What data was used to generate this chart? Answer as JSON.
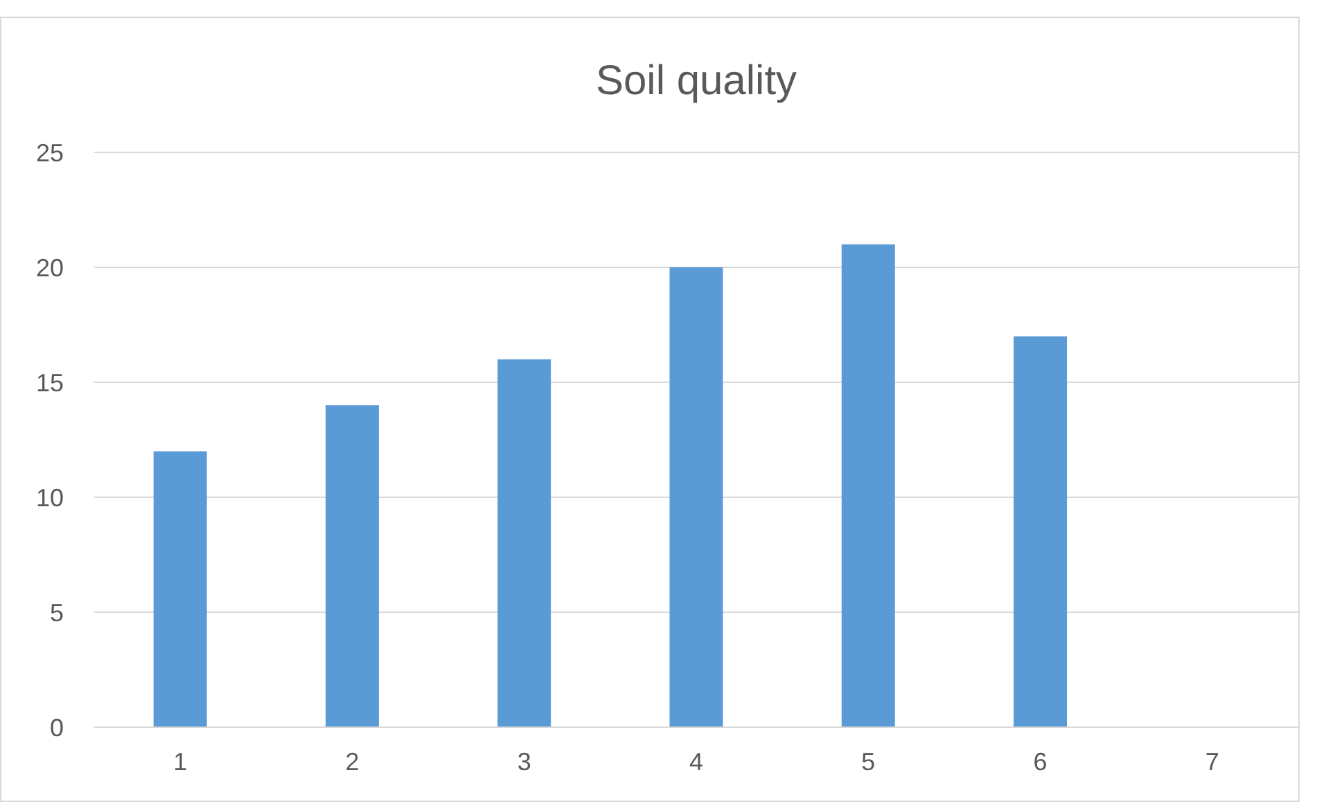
{
  "chart_data": {
    "type": "bar",
    "title": "Soil quality",
    "categories": [
      "1",
      "2",
      "3",
      "4",
      "5",
      "6",
      "7"
    ],
    "values": [
      12,
      14,
      16,
      20,
      21,
      17,
      null
    ],
    "color": "#5b9bd5",
    "ylim": [
      0,
      25
    ],
    "yticks": [
      0,
      5,
      10,
      15,
      20,
      25
    ],
    "grid": "y"
  }
}
